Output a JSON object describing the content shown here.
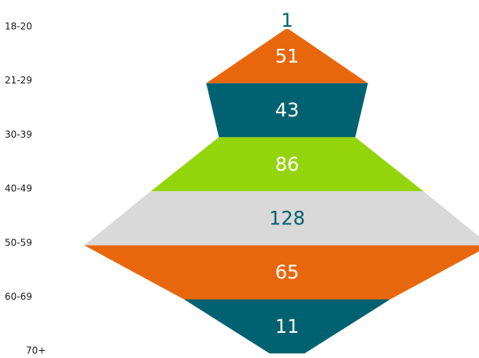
{
  "chart_data": {
    "type": "funnel",
    "title": "",
    "categories": [
      "18-20",
      "21-29",
      "30-39",
      "40-49",
      "50-59",
      "60-69",
      "70+"
    ],
    "values": [
      1,
      51,
      43,
      86,
      128,
      65,
      11
    ],
    "colors": [
      "#ffffff",
      "#e9670c",
      "#006170",
      "#93d50a",
      "#d9d9d9",
      "#e9670c",
      "#006170"
    ],
    "label_colors": [
      "#006170",
      "#ffffff",
      "#ffffff",
      "#ffffff",
      "#006170",
      "#ffffff",
      "#ffffff"
    ],
    "legend": "none",
    "grid": false
  }
}
